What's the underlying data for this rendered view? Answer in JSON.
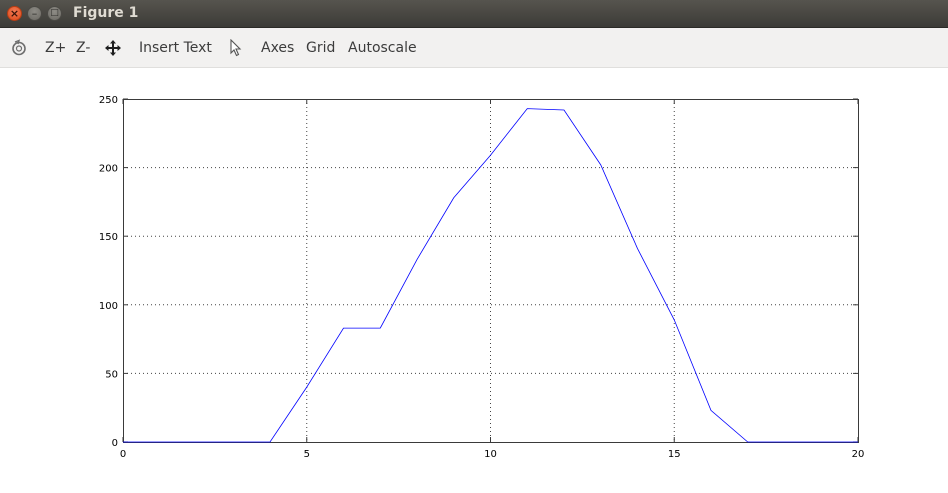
{
  "window": {
    "title": "Figure 1",
    "close_glyph": "×",
    "minimize_glyph": "–",
    "maximize_glyph": "□"
  },
  "toolbar": {
    "zoom_in_label": "Z+",
    "zoom_out_label": "Z-",
    "insert_text_label": "Insert Text",
    "axes_label": "Axes",
    "grid_label": "Grid",
    "autoscale_label": "Autoscale"
  },
  "chart_data": {
    "type": "line",
    "title": "",
    "xlabel": "",
    "ylabel": "",
    "xlim": [
      0,
      20
    ],
    "ylim": [
      0,
      250
    ],
    "xticks": [
      0,
      5,
      10,
      15,
      20
    ],
    "yticks": [
      0,
      50,
      100,
      150,
      200,
      250
    ],
    "grid": true,
    "series": [
      {
        "color": "#0000ff",
        "x": [
          0,
          1,
          2,
          3,
          4,
          5,
          6,
          7,
          8,
          9,
          10,
          11,
          12,
          13,
          14,
          15,
          16,
          17,
          18,
          19,
          20
        ],
        "y": [
          0,
          0,
          0,
          0,
          0,
          40,
          83,
          83,
          133,
          178,
          209,
          243,
          242,
          202,
          141,
          89,
          23,
          0,
          0,
          0,
          0
        ]
      }
    ]
  }
}
